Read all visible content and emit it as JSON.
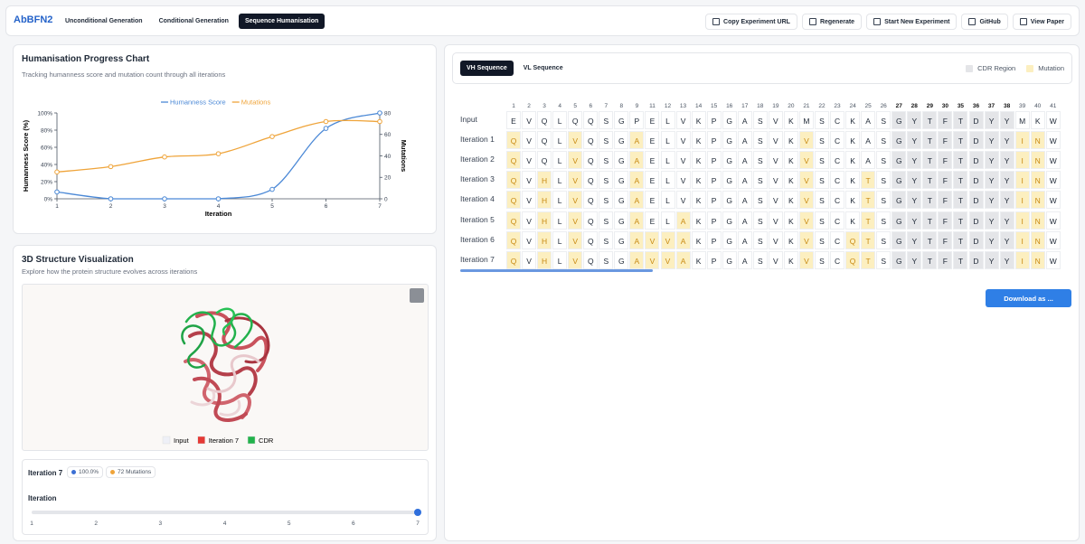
{
  "header": {
    "brand": "AbBFN2",
    "tabs": [
      "Unconditional Generation",
      "Conditional Generation",
      "Sequence Humanisation"
    ],
    "active_tab": 2,
    "actions": [
      "Copy Experiment URL",
      "Regenerate",
      "Start New Experiment",
      "GitHub",
      "View Paper"
    ]
  },
  "progress_panel": {
    "title": "Humanisation Progress Chart",
    "subtitle": "Tracking humanness score and mutation count through all iterations"
  },
  "chart_data": {
    "type": "line",
    "x": [
      1,
      2,
      3,
      4,
      5,
      6,
      7
    ],
    "xlim": [
      1,
      7
    ],
    "xticks": [
      1,
      2,
      3,
      4,
      5,
      6,
      7
    ],
    "xlabel": "Iteration",
    "ylabel": "Humanness Score (%)",
    "y2label": "Mutations",
    "ylim": [
      0,
      100
    ],
    "yticks": [
      {
        "value": 0,
        "label": "0%"
      },
      {
        "value": 20,
        "label": "20%"
      },
      {
        "value": 40,
        "label": "40%"
      },
      {
        "value": 60,
        "label": "60%"
      },
      {
        "value": 80,
        "label": "80%"
      },
      {
        "value": 100,
        "label": "100%"
      }
    ],
    "y2lim": [
      0,
      80
    ],
    "y2ticks": [
      0,
      20,
      40,
      60,
      80
    ],
    "legend": "top",
    "grid": false,
    "series": [
      {
        "name": "Humanness Score",
        "color": "#4a88d6",
        "values": [
          8,
          0,
          0,
          0,
          11,
          82,
          100
        ]
      },
      {
        "name": "Mutations",
        "color": "#efa43a",
        "values": [
          25,
          30,
          39,
          42,
          58,
          72,
          72
        ],
        "axis": "y2"
      }
    ]
  },
  "structure_panel": {
    "title": "3D Structure Visualization",
    "subtitle": "Explore how the protein structure evolves across iterations",
    "legend": [
      {
        "label": "Input",
        "color": "#eef0f7"
      },
      {
        "label": "Iteration 7",
        "color": "#e53935"
      },
      {
        "label": "CDR",
        "color": "#21b24b"
      }
    ],
    "summary": {
      "title": "Iteration 7",
      "score": "100.0%",
      "mutations": "72 Mutations"
    },
    "slider": {
      "label": "Iteration",
      "ticks": [
        1,
        2,
        3,
        4,
        5,
        6,
        7
      ],
      "value": 7
    }
  },
  "sequence_panel": {
    "tabs": [
      "VH Sequence",
      "VL Sequence"
    ],
    "active_tab": 0,
    "legend": [
      {
        "label": "CDR Region",
        "color": "#e4e5e8"
      },
      {
        "label": "Mutation",
        "color": "#fcefc0"
      }
    ],
    "columns": [
      {
        "number": 1,
        "cdr": false
      },
      {
        "number": 2,
        "cdr": false
      },
      {
        "number": 3,
        "cdr": false
      },
      {
        "number": 4,
        "cdr": false
      },
      {
        "number": 5,
        "cdr": false
      },
      {
        "number": 6,
        "cdr": false
      },
      {
        "number": 7,
        "cdr": false
      },
      {
        "number": 8,
        "cdr": false
      },
      {
        "number": 9,
        "cdr": false
      },
      {
        "number": 11,
        "cdr": false
      },
      {
        "number": 12,
        "cdr": false
      },
      {
        "number": 13,
        "cdr": false
      },
      {
        "number": 14,
        "cdr": false
      },
      {
        "number": 15,
        "cdr": false
      },
      {
        "number": 16,
        "cdr": false
      },
      {
        "number": 17,
        "cdr": false
      },
      {
        "number": 18,
        "cdr": false
      },
      {
        "number": 19,
        "cdr": false
      },
      {
        "number": 20,
        "cdr": false
      },
      {
        "number": 21,
        "cdr": false
      },
      {
        "number": 22,
        "cdr": false
      },
      {
        "number": 23,
        "cdr": false
      },
      {
        "number": 24,
        "cdr": false
      },
      {
        "number": 25,
        "cdr": false
      },
      {
        "number": 26,
        "cdr": false
      },
      {
        "number": 27,
        "cdr": true
      },
      {
        "number": 28,
        "cdr": true
      },
      {
        "number": 29,
        "cdr": true
      },
      {
        "number": 30,
        "cdr": true
      },
      {
        "number": 35,
        "cdr": true
      },
      {
        "number": 36,
        "cdr": true
      },
      {
        "number": 37,
        "cdr": true
      },
      {
        "number": 38,
        "cdr": true
      },
      {
        "number": 39,
        "cdr": false
      },
      {
        "number": 40,
        "cdr": false
      },
      {
        "number": 41,
        "cdr": false
      }
    ],
    "rows": [
      {
        "label": "Input",
        "residues": [
          "E",
          "V",
          "Q",
          "L",
          "Q",
          "Q",
          "S",
          "G",
          "P",
          "E",
          "L",
          "V",
          "K",
          "P",
          "G",
          "A",
          "S",
          "V",
          "K",
          "M",
          "S",
          "C",
          "K",
          "A",
          "S",
          "G",
          "Y",
          "T",
          "F",
          "T",
          "D",
          "Y",
          "Y",
          "M",
          "K",
          "W"
        ]
      },
      {
        "label": "Iteration 1",
        "residues": [
          "Q",
          "V",
          "Q",
          "L",
          "V",
          "Q",
          "S",
          "G",
          "A",
          "E",
          "L",
          "V",
          "K",
          "P",
          "G",
          "A",
          "S",
          "V",
          "K",
          "V",
          "S",
          "C",
          "K",
          "A",
          "S",
          "G",
          "Y",
          "T",
          "F",
          "T",
          "D",
          "Y",
          "Y",
          "I",
          "N",
          "W"
        ]
      },
      {
        "label": "Iteration 2",
        "residues": [
          "Q",
          "V",
          "Q",
          "L",
          "V",
          "Q",
          "S",
          "G",
          "A",
          "E",
          "L",
          "V",
          "K",
          "P",
          "G",
          "A",
          "S",
          "V",
          "K",
          "V",
          "S",
          "C",
          "K",
          "A",
          "S",
          "G",
          "Y",
          "T",
          "F",
          "T",
          "D",
          "Y",
          "Y",
          "I",
          "N",
          "W"
        ]
      },
      {
        "label": "Iteration 3",
        "residues": [
          "Q",
          "V",
          "H",
          "L",
          "V",
          "Q",
          "S",
          "G",
          "A",
          "E",
          "L",
          "V",
          "K",
          "P",
          "G",
          "A",
          "S",
          "V",
          "K",
          "V",
          "S",
          "C",
          "K",
          "T",
          "S",
          "G",
          "Y",
          "T",
          "F",
          "T",
          "D",
          "Y",
          "Y",
          "I",
          "N",
          "W"
        ]
      },
      {
        "label": "Iteration 4",
        "residues": [
          "Q",
          "V",
          "H",
          "L",
          "V",
          "Q",
          "S",
          "G",
          "A",
          "E",
          "L",
          "V",
          "K",
          "P",
          "G",
          "A",
          "S",
          "V",
          "K",
          "V",
          "S",
          "C",
          "K",
          "T",
          "S",
          "G",
          "Y",
          "T",
          "F",
          "T",
          "D",
          "Y",
          "Y",
          "I",
          "N",
          "W"
        ]
      },
      {
        "label": "Iteration 5",
        "residues": [
          "Q",
          "V",
          "H",
          "L",
          "V",
          "Q",
          "S",
          "G",
          "A",
          "E",
          "L",
          "A",
          "K",
          "P",
          "G",
          "A",
          "S",
          "V",
          "K",
          "V",
          "S",
          "C",
          "K",
          "T",
          "S",
          "G",
          "Y",
          "T",
          "F",
          "T",
          "D",
          "Y",
          "Y",
          "I",
          "N",
          "W"
        ]
      },
      {
        "label": "Iteration 6",
        "residues": [
          "Q",
          "V",
          "H",
          "L",
          "V",
          "Q",
          "S",
          "G",
          "A",
          "V",
          "V",
          "A",
          "K",
          "P",
          "G",
          "A",
          "S",
          "V",
          "K",
          "V",
          "S",
          "C",
          "Q",
          "T",
          "S",
          "G",
          "Y",
          "T",
          "F",
          "T",
          "D",
          "Y",
          "Y",
          "I",
          "N",
          "W"
        ]
      },
      {
        "label": "Iteration 7",
        "residues": [
          "Q",
          "V",
          "H",
          "L",
          "V",
          "Q",
          "S",
          "G",
          "A",
          "V",
          "V",
          "A",
          "K",
          "P",
          "G",
          "A",
          "S",
          "V",
          "K",
          "V",
          "S",
          "C",
          "Q",
          "T",
          "S",
          "G",
          "Y",
          "T",
          "F",
          "T",
          "D",
          "Y",
          "Y",
          "I",
          "N",
          "W"
        ]
      }
    ],
    "download": "Download as ..."
  }
}
